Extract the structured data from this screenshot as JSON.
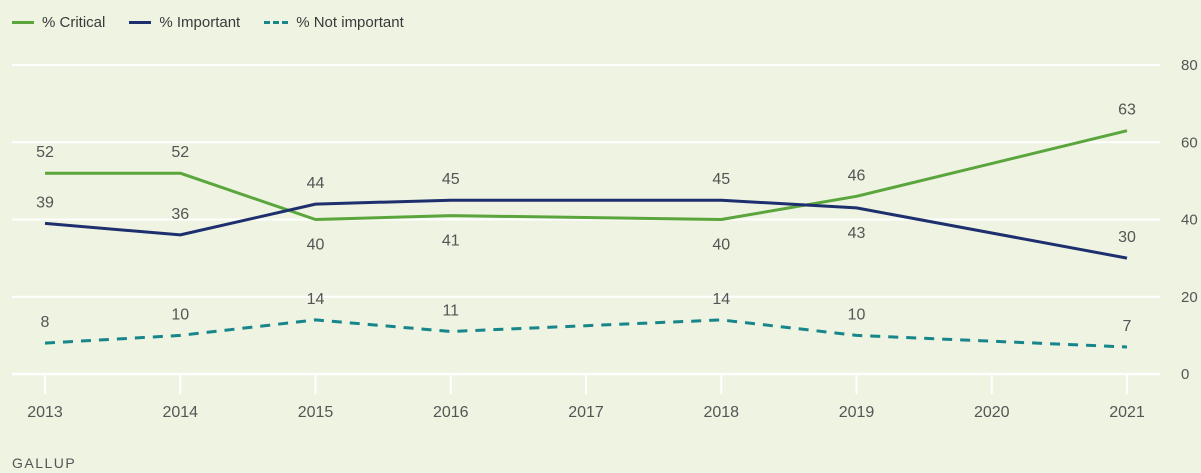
{
  "legend": [
    {
      "label": "% Critical",
      "color": "#5aa53c",
      "dashed": false
    },
    {
      "label": "% Important",
      "color": "#1e2f6e",
      "dashed": false
    },
    {
      "label": "% Not important",
      "color": "#17868a",
      "dashed": true
    }
  ],
  "source": "GALLUP",
  "chart_data": {
    "type": "line",
    "x": [
      "2013",
      "2014",
      "2015",
      "2016",
      "2017",
      "2018",
      "2019",
      "2020",
      "2021"
    ],
    "ylim": [
      0,
      80
    ],
    "yticks": [
      "0",
      "20",
      "40",
      "60",
      "80"
    ],
    "grid": true,
    "legend_position": "top-left",
    "series": [
      {
        "name": "% Critical",
        "color": "#5aa53c",
        "dashed": false,
        "points": [
          {
            "x": "2013",
            "y": 52,
            "label": "52"
          },
          {
            "x": "2014",
            "y": 52,
            "label": "52"
          },
          {
            "x": "2015",
            "y": 40,
            "label": "40"
          },
          {
            "x": "2016",
            "y": 41,
            "label": "41"
          },
          {
            "x": "2018",
            "y": 40,
            "label": "40"
          },
          {
            "x": "2019",
            "y": 46,
            "label": "46"
          },
          {
            "x": "2021",
            "y": 63,
            "label": "63"
          }
        ]
      },
      {
        "name": "% Important",
        "color": "#1e2f6e",
        "dashed": false,
        "points": [
          {
            "x": "2013",
            "y": 39,
            "label": "39"
          },
          {
            "x": "2014",
            "y": 36,
            "label": "36"
          },
          {
            "x": "2015",
            "y": 44,
            "label": "44"
          },
          {
            "x": "2016",
            "y": 45,
            "label": "45"
          },
          {
            "x": "2018",
            "y": 45,
            "label": "45"
          },
          {
            "x": "2019",
            "y": 43,
            "label": "43"
          },
          {
            "x": "2021",
            "y": 30,
            "label": "30"
          }
        ]
      },
      {
        "name": "% Not important",
        "color": "#17868a",
        "dashed": true,
        "points": [
          {
            "x": "2013",
            "y": 8,
            "label": "8"
          },
          {
            "x": "2014",
            "y": 10,
            "label": "10"
          },
          {
            "x": "2015",
            "y": 14,
            "label": "14"
          },
          {
            "x": "2016",
            "y": 11,
            "label": "11"
          },
          {
            "x": "2018",
            "y": 14,
            "label": "14"
          },
          {
            "x": "2019",
            "y": 10,
            "label": "10"
          },
          {
            "x": "2021",
            "y": 7,
            "label": "7"
          }
        ]
      }
    ]
  }
}
